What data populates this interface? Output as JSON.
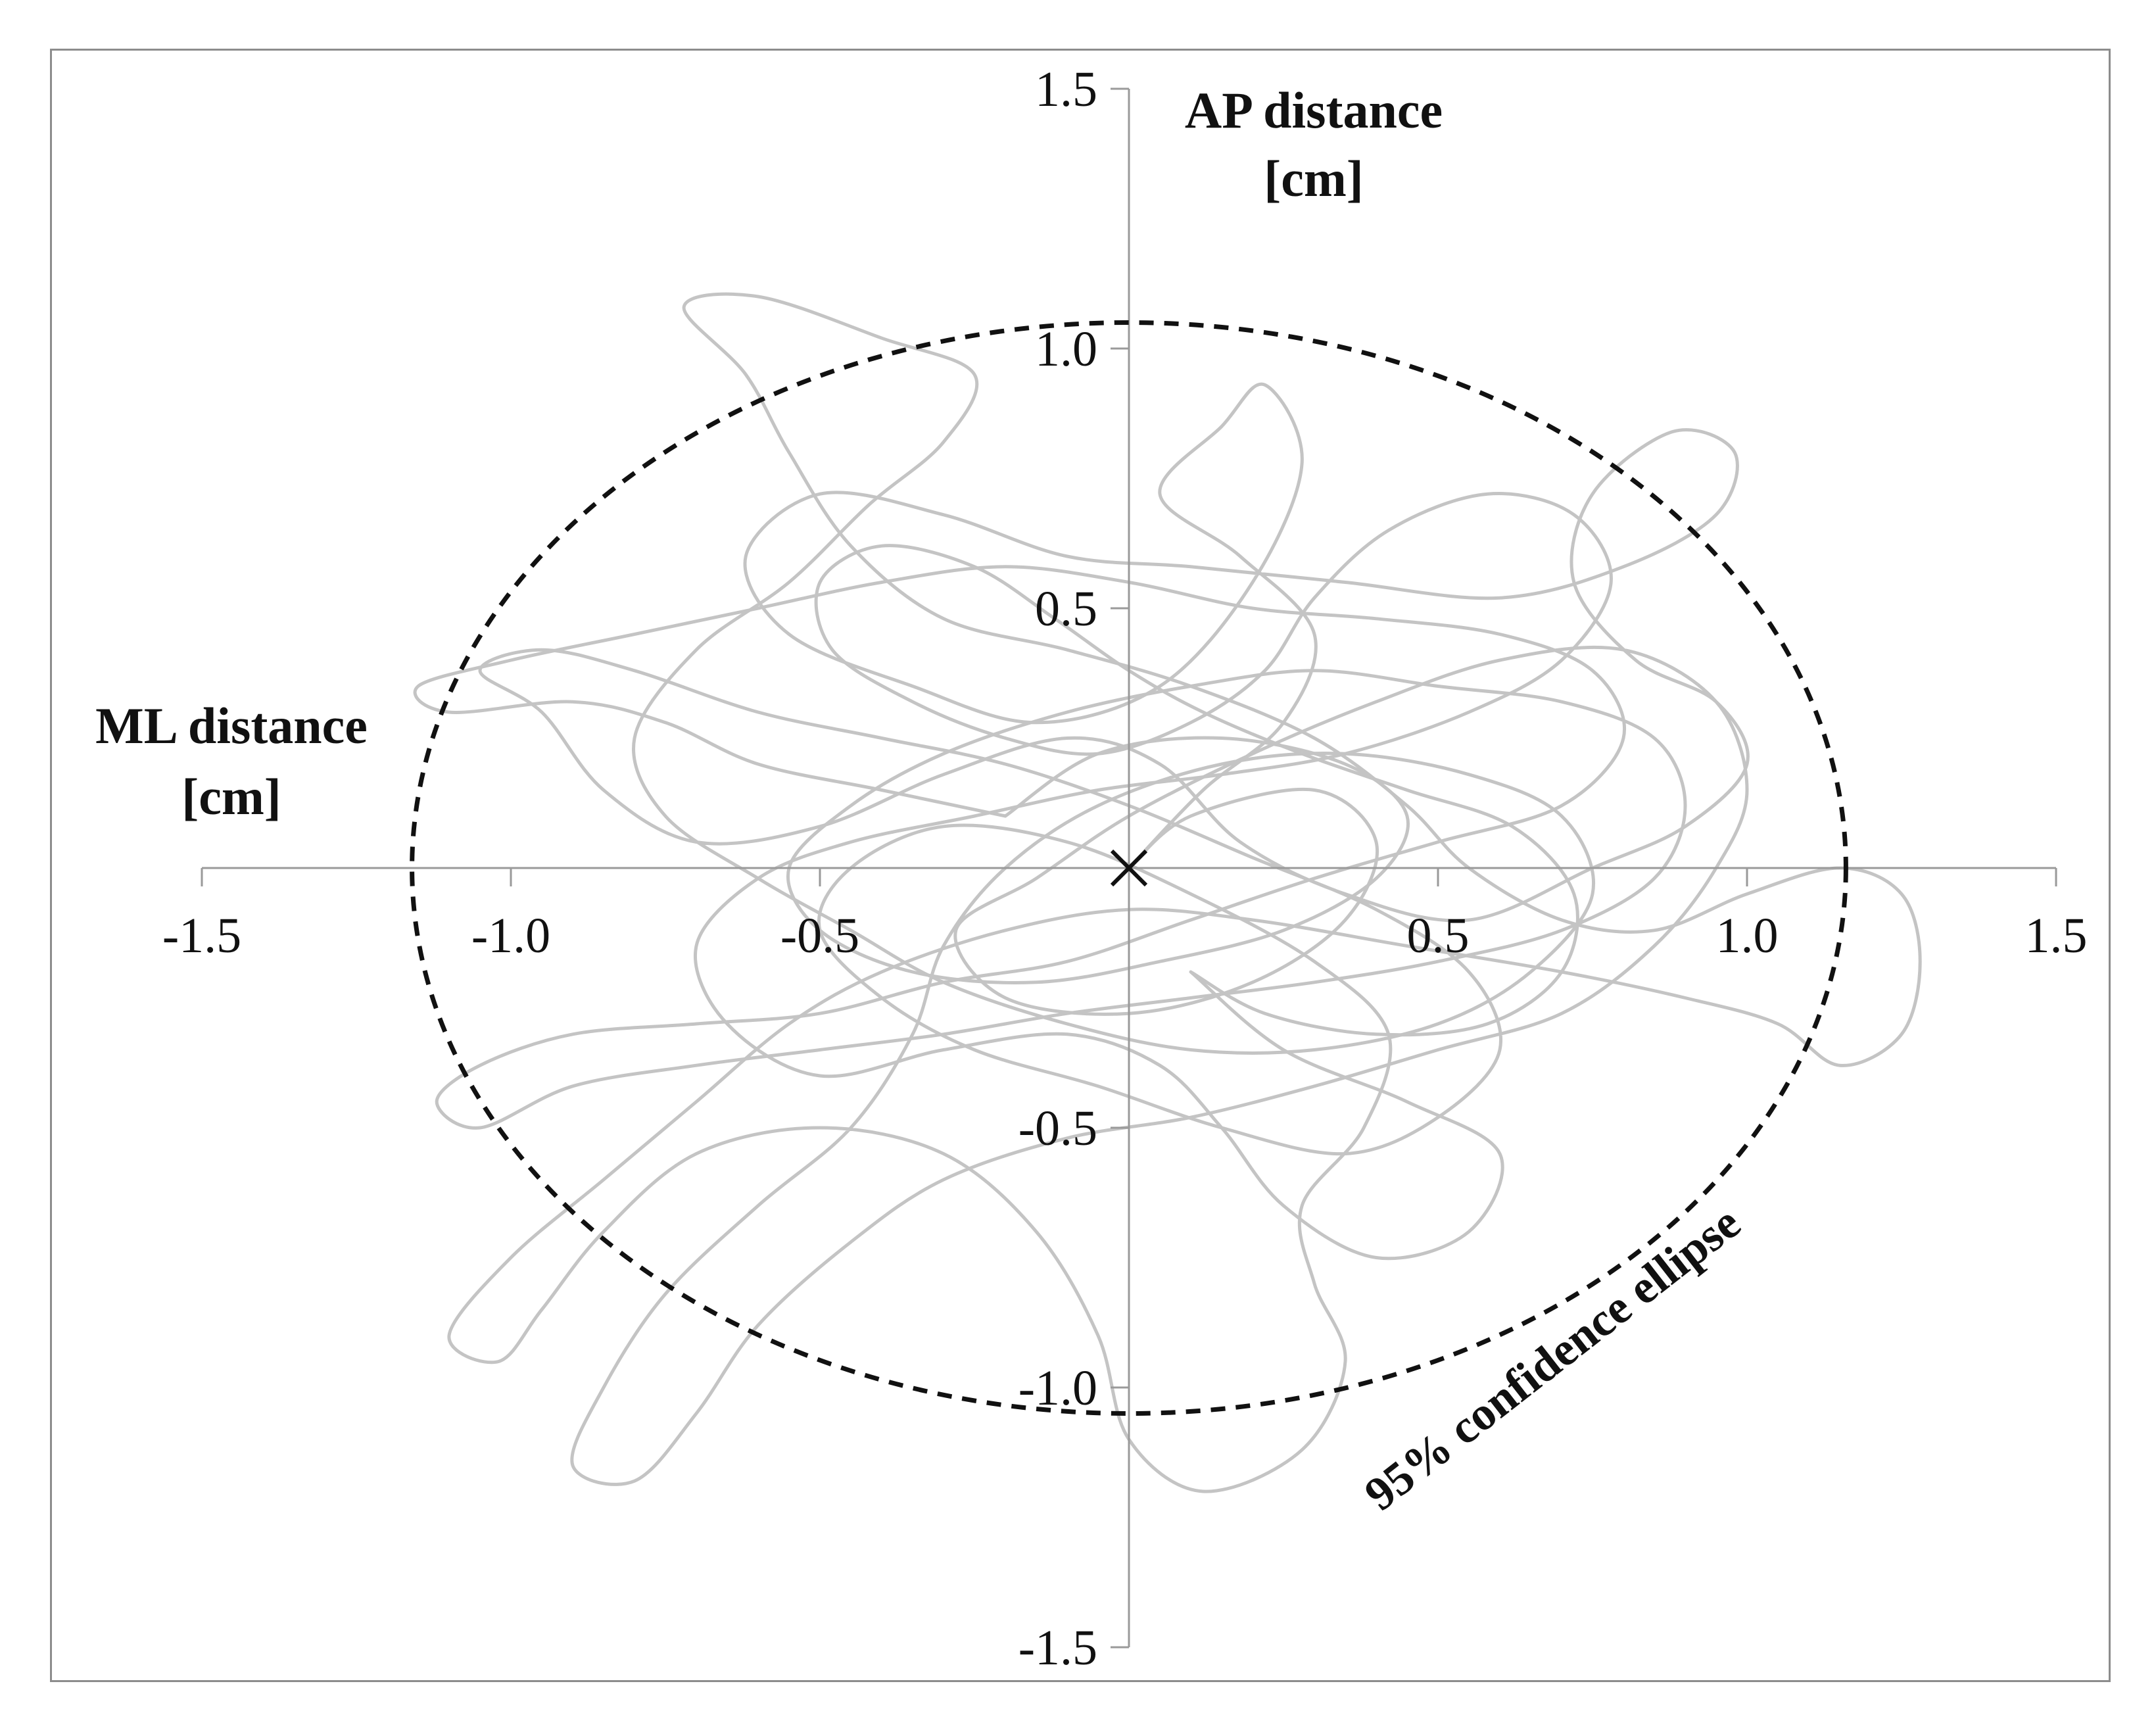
{
  "chart_data": {
    "type": "line",
    "title": "",
    "xlabel": "ML distance [cm]",
    "ylabel": "AP distance [cm]",
    "xlabel_lines": [
      "ML distance",
      "[cm]"
    ],
    "ylabel_lines": [
      "AP distance",
      "[cm]"
    ],
    "xlim": [
      -1.5,
      1.5
    ],
    "ylim": [
      -1.5,
      1.5
    ],
    "xticks": [
      -1.5,
      -1.0,
      -0.5,
      0.5,
      1.0,
      1.5
    ],
    "yticks": [
      -1.5,
      -1.0,
      -0.5,
      0.5,
      1.0,
      1.5
    ],
    "xtick_labels": [
      "-1.5",
      "-1.0",
      "-0.5",
      "0.5",
      "1.0",
      "1.5"
    ],
    "ytick_labels": [
      "-1.5",
      "-1.0",
      "-0.5",
      "0.5",
      "1.0",
      "1.5"
    ],
    "grid": false,
    "mean_marker": {
      "x": 0,
      "y": 0,
      "symbol": "x"
    },
    "confidence_ellipse": {
      "label": "95% confidence ellipse",
      "center_x": 0.0,
      "center_y": 0.0,
      "semi_axis_x": 1.16,
      "semi_axis_y": 1.05,
      "style": "dashed"
    },
    "series": [
      {
        "type": "sway_path",
        "color": "#c4c4c4",
        "points": [
          [
            0.0,
            0.0
          ],
          [
            0.12,
            0.15
          ],
          [
            0.25,
            0.28
          ],
          [
            0.3,
            0.45
          ],
          [
            0.18,
            0.6
          ],
          [
            0.05,
            0.72
          ],
          [
            0.15,
            0.85
          ],
          [
            0.22,
            0.93
          ],
          [
            0.28,
            0.78
          ],
          [
            0.2,
            0.55
          ],
          [
            0.05,
            0.35
          ],
          [
            -0.15,
            0.28
          ],
          [
            -0.35,
            0.35
          ],
          [
            -0.55,
            0.45
          ],
          [
            -0.62,
            0.6
          ],
          [
            -0.5,
            0.72
          ],
          [
            -0.3,
            0.68
          ],
          [
            -0.1,
            0.6
          ],
          [
            0.1,
            0.58
          ],
          [
            0.35,
            0.55
          ],
          [
            0.6,
            0.52
          ],
          [
            0.8,
            0.58
          ],
          [
            0.95,
            0.68
          ],
          [
            0.98,
            0.8
          ],
          [
            0.88,
            0.84
          ],
          [
            0.75,
            0.72
          ],
          [
            0.72,
            0.55
          ],
          [
            0.82,
            0.4
          ],
          [
            0.95,
            0.32
          ],
          [
            1.0,
            0.2
          ],
          [
            0.9,
            0.08
          ],
          [
            0.75,
            0.0
          ],
          [
            0.55,
            -0.1
          ],
          [
            0.35,
            -0.05
          ],
          [
            0.18,
            0.05
          ],
          [
            0.05,
            0.2
          ],
          [
            -0.1,
            0.25
          ],
          [
            -0.3,
            0.18
          ],
          [
            -0.5,
            0.08
          ],
          [
            -0.7,
            0.05
          ],
          [
            -0.85,
            0.15
          ],
          [
            -0.95,
            0.3
          ],
          [
            -1.05,
            0.38
          ],
          [
            -0.95,
            0.42
          ],
          [
            -0.8,
            0.38
          ],
          [
            -0.6,
            0.3
          ],
          [
            -0.4,
            0.25
          ],
          [
            -0.2,
            0.2
          ],
          [
            0.0,
            0.12
          ],
          [
            0.2,
            0.02
          ],
          [
            0.4,
            -0.08
          ],
          [
            0.55,
            -0.2
          ],
          [
            0.6,
            -0.35
          ],
          [
            0.5,
            -0.48
          ],
          [
            0.35,
            -0.55
          ],
          [
            0.15,
            -0.5
          ],
          [
            -0.05,
            -0.42
          ],
          [
            -0.25,
            -0.35
          ],
          [
            -0.4,
            -0.25
          ],
          [
            -0.5,
            -0.12
          ],
          [
            -0.45,
            0.0
          ],
          [
            -0.3,
            0.08
          ],
          [
            -0.1,
            0.05
          ],
          [
            0.1,
            -0.05
          ],
          [
            0.3,
            -0.18
          ],
          [
            0.42,
            -0.32
          ],
          [
            0.38,
            -0.5
          ],
          [
            0.28,
            -0.65
          ],
          [
            0.3,
            -0.8
          ],
          [
            0.35,
            -0.95
          ],
          [
            0.28,
            -1.12
          ],
          [
            0.12,
            -1.2
          ],
          [
            0.0,
            -1.1
          ],
          [
            -0.05,
            -0.9
          ],
          [
            -0.15,
            -0.7
          ],
          [
            -0.3,
            -0.55
          ],
          [
            -0.5,
            -0.5
          ],
          [
            -0.7,
            -0.55
          ],
          [
            -0.85,
            -0.7
          ],
          [
            -0.95,
            -0.85
          ],
          [
            -1.02,
            -0.95
          ],
          [
            -1.1,
            -0.9
          ],
          [
            -1.0,
            -0.75
          ],
          [
            -0.85,
            -0.6
          ],
          [
            -0.7,
            -0.45
          ],
          [
            -0.55,
            -0.3
          ],
          [
            -0.4,
            -0.2
          ],
          [
            -0.2,
            -0.12
          ],
          [
            0.0,
            -0.08
          ],
          [
            0.2,
            -0.1
          ],
          [
            0.45,
            -0.15
          ],
          [
            0.7,
            -0.2
          ],
          [
            0.9,
            -0.25
          ],
          [
            1.05,
            -0.3
          ],
          [
            1.15,
            -0.38
          ],
          [
            1.25,
            -0.32
          ],
          [
            1.28,
            -0.18
          ],
          [
            1.25,
            -0.05
          ],
          [
            1.15,
            0.0
          ],
          [
            1.0,
            -0.05
          ],
          [
            0.85,
            -0.12
          ],
          [
            0.7,
            -0.1
          ],
          [
            0.55,
            0.0
          ],
          [
            0.45,
            0.12
          ],
          [
            0.3,
            0.25
          ],
          [
            0.1,
            0.35
          ],
          [
            -0.1,
            0.42
          ],
          [
            -0.3,
            0.48
          ],
          [
            -0.45,
            0.62
          ],
          [
            -0.55,
            0.8
          ],
          [
            -0.62,
            0.95
          ],
          [
            -0.72,
            1.08
          ],
          [
            -0.6,
            1.1
          ],
          [
            -0.4,
            1.02
          ],
          [
            -0.25,
            0.95
          ],
          [
            -0.3,
            0.82
          ],
          [
            -0.42,
            0.7
          ],
          [
            -0.55,
            0.55
          ],
          [
            -0.7,
            0.42
          ],
          [
            -0.8,
            0.25
          ],
          [
            -0.75,
            0.1
          ],
          [
            -0.6,
            -0.02
          ],
          [
            -0.45,
            -0.12
          ],
          [
            -0.3,
            -0.22
          ],
          [
            -0.1,
            -0.3
          ],
          [
            0.1,
            -0.35
          ],
          [
            0.3,
            -0.35
          ],
          [
            0.5,
            -0.3
          ],
          [
            0.65,
            -0.2
          ],
          [
            0.75,
            -0.05
          ],
          [
            0.7,
            0.1
          ],
          [
            0.55,
            0.18
          ],
          [
            0.35,
            0.22
          ],
          [
            0.15,
            0.2
          ],
          [
            -0.05,
            0.12
          ],
          [
            -0.2,
            0.0
          ],
          [
            -0.3,
            -0.15
          ],
          [
            -0.35,
            -0.32
          ],
          [
            -0.45,
            -0.5
          ],
          [
            -0.6,
            -0.65
          ],
          [
            -0.75,
            -0.82
          ],
          [
            -0.85,
            -1.0
          ],
          [
            -0.9,
            -1.15
          ],
          [
            -0.8,
            -1.18
          ],
          [
            -0.7,
            -1.05
          ],
          [
            -0.6,
            -0.88
          ],
          [
            -0.45,
            -0.72
          ],
          [
            -0.3,
            -0.6
          ],
          [
            -0.1,
            -0.52
          ],
          [
            0.1,
            -0.48
          ],
          [
            0.3,
            -0.42
          ],
          [
            0.5,
            -0.35
          ],
          [
            0.7,
            -0.28
          ],
          [
            0.85,
            -0.15
          ],
          [
            0.95,
            0.0
          ],
          [
            1.0,
            0.15
          ],
          [
            0.95,
            0.32
          ],
          [
            0.8,
            0.42
          ],
          [
            0.6,
            0.4
          ],
          [
            0.4,
            0.32
          ],
          [
            0.2,
            0.22
          ],
          [
            0.0,
            0.1
          ],
          [
            -0.15,
            -0.02
          ],
          [
            -0.28,
            -0.12
          ],
          [
            -0.2,
            -0.25
          ],
          [
            0.0,
            -0.28
          ],
          [
            0.2,
            -0.22
          ],
          [
            0.35,
            -0.1
          ],
          [
            0.4,
            0.05
          ],
          [
            0.3,
            0.15
          ],
          [
            0.1,
            0.1
          ],
          [
            0.0,
            0.0
          ]
        ]
      },
      {
        "type": "sway_path",
        "color": "#c4c4c4",
        "points": [
          [
            -0.2,
            0.1
          ],
          [
            -0.4,
            0.15
          ],
          [
            -0.6,
            0.2
          ],
          [
            -0.75,
            0.28
          ],
          [
            -0.9,
            0.32
          ],
          [
            -1.1,
            0.3
          ],
          [
            -1.15,
            0.35
          ],
          [
            -1.0,
            0.4
          ],
          [
            -0.8,
            0.45
          ],
          [
            -0.6,
            0.5
          ],
          [
            -0.4,
            0.55
          ],
          [
            -0.2,
            0.58
          ],
          [
            0.0,
            0.55
          ],
          [
            0.2,
            0.5
          ],
          [
            0.4,
            0.48
          ],
          [
            0.6,
            0.45
          ],
          [
            0.75,
            0.38
          ],
          [
            0.8,
            0.25
          ],
          [
            0.7,
            0.12
          ],
          [
            0.5,
            0.05
          ],
          [
            0.3,
            -0.02
          ],
          [
            0.1,
            -0.1
          ],
          [
            -0.1,
            -0.18
          ],
          [
            -0.3,
            -0.22
          ],
          [
            -0.5,
            -0.28
          ],
          [
            -0.7,
            -0.3
          ],
          [
            -0.9,
            -0.32
          ],
          [
            -1.05,
            -0.38
          ],
          [
            -1.12,
            -0.45
          ],
          [
            -1.05,
            -0.5
          ],
          [
            -0.9,
            -0.42
          ],
          [
            -0.7,
            -0.38
          ],
          [
            -0.5,
            -0.35
          ],
          [
            -0.3,
            -0.32
          ],
          [
            -0.1,
            -0.28
          ],
          [
            0.1,
            -0.25
          ],
          [
            0.3,
            -0.22
          ],
          [
            0.5,
            -0.18
          ],
          [
            0.7,
            -0.12
          ],
          [
            0.85,
            -0.02
          ],
          [
            0.9,
            0.12
          ],
          [
            0.85,
            0.25
          ],
          [
            0.7,
            0.32
          ],
          [
            0.5,
            0.35
          ],
          [
            0.3,
            0.38
          ],
          [
            0.1,
            0.35
          ],
          [
            -0.1,
            0.3
          ],
          [
            -0.3,
            0.22
          ],
          [
            -0.45,
            0.12
          ],
          [
            -0.55,
            0.0
          ],
          [
            -0.5,
            -0.12
          ],
          [
            -0.35,
            -0.2
          ],
          [
            -0.15,
            -0.22
          ],
          [
            0.05,
            -0.18
          ],
          [
            0.25,
            -0.12
          ],
          [
            0.4,
            -0.02
          ],
          [
            0.45,
            0.1
          ],
          [
            0.35,
            0.2
          ],
          [
            0.15,
            0.25
          ],
          [
            -0.05,
            0.22
          ],
          [
            -0.2,
            0.1
          ]
        ]
      },
      {
        "type": "sway_path",
        "color": "#c4c4c4",
        "points": [
          [
            0.1,
            -0.2
          ],
          [
            0.25,
            -0.35
          ],
          [
            0.45,
            -0.45
          ],
          [
            0.6,
            -0.55
          ],
          [
            0.55,
            -0.7
          ],
          [
            0.4,
            -0.75
          ],
          [
            0.25,
            -0.65
          ],
          [
            0.15,
            -0.5
          ],
          [
            0.05,
            -0.38
          ],
          [
            -0.1,
            -0.32
          ],
          [
            -0.3,
            -0.35
          ],
          [
            -0.5,
            -0.4
          ],
          [
            -0.65,
            -0.3
          ],
          [
            -0.7,
            -0.15
          ],
          [
            -0.6,
            -0.02
          ],
          [
            -0.45,
            0.05
          ],
          [
            -0.25,
            0.1
          ],
          [
            -0.05,
            0.15
          ],
          [
            0.15,
            0.18
          ],
          [
            0.35,
            0.22
          ],
          [
            0.55,
            0.3
          ],
          [
            0.7,
            0.4
          ],
          [
            0.78,
            0.55
          ],
          [
            0.72,
            0.68
          ],
          [
            0.58,
            0.72
          ],
          [
            0.42,
            0.65
          ],
          [
            0.3,
            0.52
          ],
          [
            0.22,
            0.38
          ],
          [
            0.1,
            0.28
          ],
          [
            -0.05,
            0.22
          ],
          [
            -0.2,
            0.25
          ],
          [
            -0.35,
            0.32
          ],
          [
            -0.48,
            0.42
          ],
          [
            -0.5,
            0.55
          ],
          [
            -0.4,
            0.62
          ],
          [
            -0.25,
            0.58
          ],
          [
            -0.12,
            0.48
          ],
          [
            0.0,
            0.38
          ],
          [
            0.12,
            0.3
          ],
          [
            0.28,
            0.22
          ],
          [
            0.45,
            0.15
          ],
          [
            0.62,
            0.08
          ],
          [
            0.72,
            -0.05
          ],
          [
            0.7,
            -0.2
          ],
          [
            0.58,
            -0.3
          ],
          [
            0.4,
            -0.32
          ],
          [
            0.22,
            -0.28
          ],
          [
            0.1,
            -0.2
          ]
        ]
      }
    ]
  }
}
